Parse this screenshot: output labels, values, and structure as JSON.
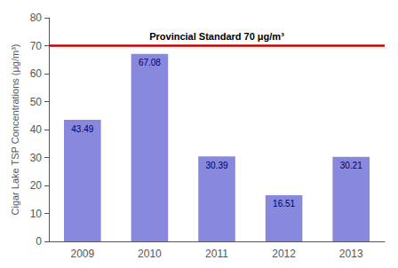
{
  "chart_data": {
    "type": "bar",
    "ylabel": "Cigar Lake TSP Concentrations (μg/m³)",
    "categories": [
      "2009",
      "2010",
      "2011",
      "2012",
      "2013"
    ],
    "values": [
      43.49,
      67.08,
      30.39,
      16.51,
      30.21
    ],
    "color": "#8888dd",
    "ylim": [
      0,
      80
    ],
    "yticks": [
      0,
      10,
      20,
      30,
      40,
      50,
      60,
      70,
      80
    ],
    "grid": false,
    "data_labels": true,
    "annotations": [
      {
        "text": "Provincial Standard 70 μg/m³",
        "y": 70,
        "color": "#cc0000"
      }
    ]
  }
}
